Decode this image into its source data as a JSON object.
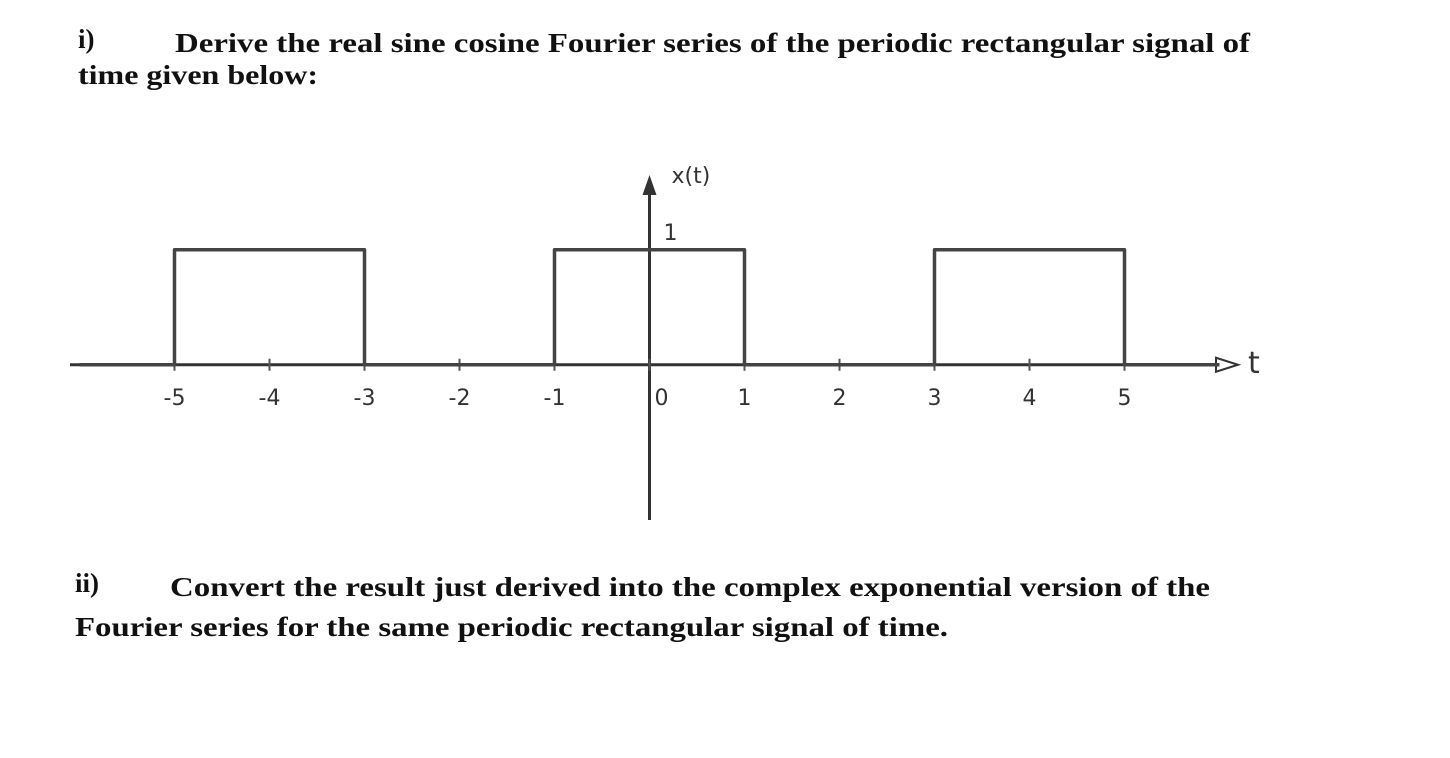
{
  "questions": [
    {
      "number": "i)",
      "lines": [
        "Derive the real sine cosine Fourier series of the periodic rectangular signal of",
        "time given below:"
      ]
    },
    {
      "number": "ii)",
      "lines": [
        "Convert the result just derived into the complex exponential version of the",
        "Fourier series for the same periodic rectangular signal of time."
      ]
    }
  ],
  "chart_data": {
    "type": "line",
    "x_label": "t",
    "y_label": "x(t)",
    "x": [
      -6,
      -5,
      -5,
      -3,
      -3,
      -1,
      -1,
      1,
      1,
      3,
      3,
      5,
      5,
      6
    ],
    "values": [
      0,
      0,
      1,
      1,
      0,
      0,
      1,
      1,
      0,
      0,
      1,
      1,
      0,
      0
    ],
    "color": "#444444",
    "xlim": [
      -6.1,
      6.3
    ],
    "ylim": [
      -1.35,
      1.65
    ],
    "xticks": [
      -5,
      -4,
      -3,
      -2,
      -1,
      0,
      1,
      2,
      3,
      4,
      5
    ],
    "yticks": [
      1
    ]
  }
}
